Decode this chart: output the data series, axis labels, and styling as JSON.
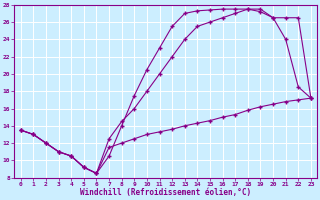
{
  "xlabel": "Windchill (Refroidissement éolien,°C)",
  "bg_color": "#cceeff",
  "grid_color": "#ffffff",
  "line_color": "#880088",
  "xlim": [
    -0.5,
    23.5
  ],
  "ylim": [
    8,
    28
  ],
  "xticks": [
    0,
    1,
    2,
    3,
    4,
    5,
    6,
    7,
    8,
    9,
    10,
    11,
    12,
    13,
    14,
    15,
    16,
    17,
    18,
    19,
    20,
    21,
    22,
    23
  ],
  "yticks": [
    8,
    10,
    12,
    14,
    16,
    18,
    20,
    22,
    24,
    26,
    28
  ],
  "curve_top_x": [
    0,
    1,
    2,
    3,
    4,
    5,
    6,
    7,
    8,
    9,
    10,
    11,
    12,
    13,
    14,
    15,
    16,
    17,
    18,
    19,
    20,
    21,
    22,
    23
  ],
  "curve_top_y": [
    13.5,
    13.0,
    12.0,
    11.0,
    10.5,
    9.2,
    8.5,
    10.5,
    14.0,
    17.5,
    20.5,
    23.0,
    25.5,
    27.0,
    27.3,
    27.4,
    27.5,
    27.5,
    27.5,
    27.2,
    26.5,
    24.0,
    18.5,
    17.2
  ],
  "curve_mid_x": [
    0,
    1,
    2,
    3,
    4,
    5,
    6,
    7,
    8,
    9,
    10,
    11,
    12,
    13,
    14,
    15,
    16,
    17,
    18,
    19,
    20,
    21,
    22,
    23
  ],
  "curve_mid_y": [
    13.5,
    13.0,
    12.0,
    11.0,
    10.5,
    9.2,
    8.5,
    12.5,
    14.5,
    16.0,
    18.0,
    20.0,
    22.0,
    24.0,
    25.5,
    26.0,
    26.5,
    27.0,
    27.5,
    27.5,
    26.5,
    26.5,
    26.5,
    17.2
  ],
  "curve_bot_x": [
    0,
    1,
    2,
    3,
    4,
    5,
    6,
    7,
    8,
    9,
    10,
    11,
    12,
    13,
    14,
    15,
    16,
    17,
    18,
    19,
    20,
    21,
    22,
    23
  ],
  "curve_bot_y": [
    13.5,
    13.0,
    12.0,
    11.0,
    10.5,
    9.2,
    8.5,
    11.5,
    12.0,
    12.5,
    13.0,
    13.3,
    13.6,
    14.0,
    14.3,
    14.6,
    15.0,
    15.3,
    15.8,
    16.2,
    16.5,
    16.8,
    17.0,
    17.2
  ]
}
